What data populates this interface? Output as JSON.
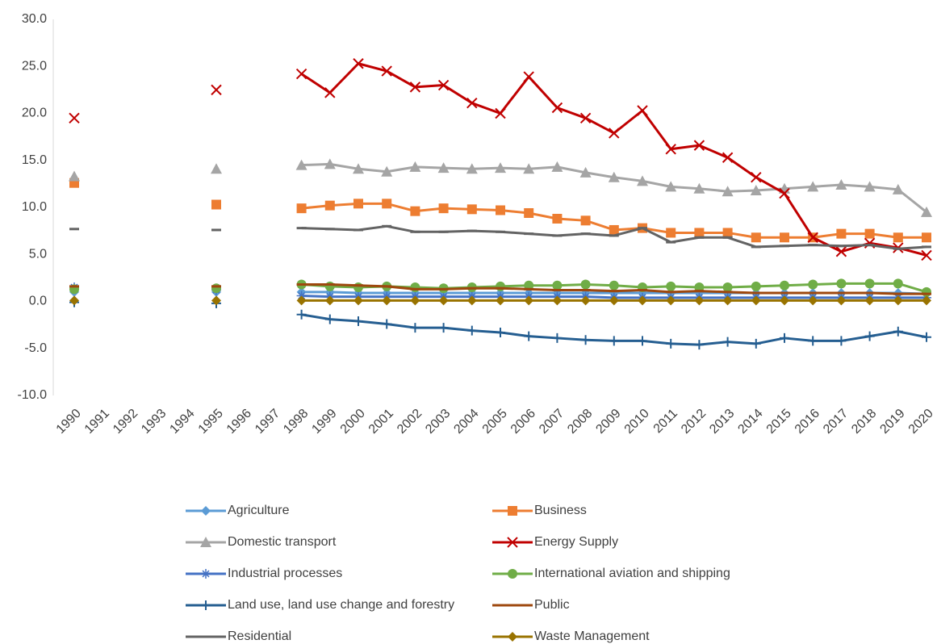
{
  "chart_data": {
    "type": "line",
    "categories": [
      "1990",
      "1991",
      "1992",
      "1993",
      "1994",
      "1995",
      "1996",
      "1997",
      "1998",
      "1999",
      "2000",
      "2001",
      "2002",
      "2003",
      "2004",
      "2005",
      "2006",
      "2007",
      "2008",
      "2009",
      "2010",
      "2011",
      "2012",
      "2013",
      "2014",
      "2015",
      "2016",
      "2017",
      "2018",
      "2019",
      "2020"
    ],
    "ylim": [
      -10,
      30
    ],
    "yticks": [
      {
        "value": -10,
        "label": "-10.0"
      },
      {
        "value": -5,
        "label": "-5.0"
      },
      {
        "value": 0,
        "label": "0.0"
      },
      {
        "value": 5,
        "label": "5.0"
      },
      {
        "value": 10,
        "label": "10.0"
      },
      {
        "value": 15,
        "label": "15.0"
      },
      {
        "value": 20,
        "label": "20.0"
      },
      {
        "value": 25,
        "label": "25.0"
      },
      {
        "value": 30,
        "label": "30.0"
      }
    ],
    "grid": false,
    "legend": "bottom",
    "series": [
      {
        "name": "Agriculture",
        "color": "#5b9bd5",
        "marker": "diamond",
        "values": [
          1.0,
          null,
          null,
          null,
          null,
          1.0,
          null,
          null,
          1.0,
          1.0,
          0.9,
          0.9,
          0.9,
          0.9,
          0.9,
          0.9,
          0.9,
          0.9,
          0.9,
          0.9,
          0.9,
          0.9,
          0.9,
          0.9,
          0.9,
          0.9,
          0.9,
          0.9,
          0.9,
          0.9,
          0.8
        ]
      },
      {
        "name": "Business",
        "color": "#ed7d31",
        "marker": "square",
        "values": [
          12.6,
          null,
          null,
          null,
          null,
          10.3,
          null,
          null,
          9.9,
          10.2,
          10.4,
          10.4,
          9.6,
          9.9,
          9.8,
          9.7,
          9.4,
          8.8,
          8.6,
          7.6,
          7.8,
          7.3,
          7.3,
          7.3,
          6.8,
          6.8,
          6.8,
          7.2,
          7.2,
          6.8,
          6.8
        ]
      },
      {
        "name": "Domestic transport",
        "color": "#a5a5a5",
        "marker": "triangle",
        "values": [
          13.3,
          null,
          null,
          null,
          null,
          14.1,
          null,
          null,
          14.5,
          14.6,
          14.1,
          13.8,
          14.3,
          14.2,
          14.1,
          14.2,
          14.1,
          14.3,
          13.7,
          13.2,
          12.8,
          12.2,
          12.0,
          11.7,
          11.8,
          12.0,
          12.2,
          12.4,
          12.2,
          11.9,
          9.5
        ]
      },
      {
        "name": "Energy Supply",
        "color": "#c00000",
        "marker": "x",
        "values": [
          19.5,
          null,
          null,
          null,
          null,
          22.5,
          null,
          null,
          24.2,
          22.2,
          25.3,
          24.5,
          22.8,
          23.0,
          21.1,
          20.0,
          23.9,
          20.6,
          19.5,
          17.9,
          20.3,
          16.2,
          16.6,
          15.3,
          13.2,
          11.5,
          6.8,
          5.3,
          6.2,
          5.7,
          4.9
        ]
      },
      {
        "name": "Industrial processes",
        "color": "#4472c4",
        "marker": "star",
        "values": [
          1.5,
          null,
          null,
          null,
          null,
          1.2,
          null,
          null,
          0.6,
          0.5,
          0.5,
          0.5,
          0.5,
          0.5,
          0.5,
          0.5,
          0.5,
          0.5,
          0.5,
          0.4,
          0.4,
          0.4,
          0.4,
          0.4,
          0.4,
          0.4,
          0.4,
          0.4,
          0.4,
          0.4,
          0.4
        ]
      },
      {
        "name": "International aviation and shipping",
        "color": "#70ad47",
        "marker": "circle",
        "values": [
          1.3,
          null,
          null,
          null,
          null,
          1.4,
          null,
          null,
          1.8,
          1.6,
          1.5,
          1.6,
          1.5,
          1.4,
          1.5,
          1.6,
          1.7,
          1.7,
          1.8,
          1.7,
          1.5,
          1.6,
          1.5,
          1.5,
          1.6,
          1.7,
          1.8,
          1.9,
          1.9,
          1.9,
          1.0
        ]
      },
      {
        "name": "Land use, land use change and forestry",
        "color": "#255e91",
        "marker": "plus",
        "values": [
          -0.1,
          null,
          null,
          null,
          null,
          -0.2,
          null,
          null,
          -1.4,
          -1.9,
          -2.1,
          -2.4,
          -2.8,
          -2.8,
          -3.1,
          -3.3,
          -3.7,
          -3.9,
          -4.1,
          -4.2,
          -4.2,
          -4.5,
          -4.6,
          -4.3,
          -4.5,
          -3.9,
          -4.2,
          -4.2,
          -3.7,
          -3.2,
          -3.8
        ]
      },
      {
        "name": "Public",
        "color": "#9e480e",
        "marker": "dash",
        "values": [
          1.6,
          null,
          null,
          null,
          null,
          1.6,
          null,
          null,
          1.8,
          1.8,
          1.7,
          1.6,
          1.3,
          1.3,
          1.4,
          1.4,
          1.3,
          1.2,
          1.2,
          1.1,
          1.2,
          1.0,
          1.1,
          1.0,
          0.9,
          0.9,
          0.9,
          0.9,
          0.9,
          0.8,
          0.8
        ]
      },
      {
        "name": "Residential",
        "color": "#636363",
        "marker": "dash",
        "values": [
          7.7,
          null,
          null,
          null,
          null,
          7.6,
          null,
          null,
          7.8,
          7.7,
          7.6,
          8.0,
          7.4,
          7.4,
          7.5,
          7.4,
          7.2,
          7.0,
          7.2,
          7.0,
          7.8,
          6.3,
          6.8,
          6.8,
          5.8,
          5.9,
          6.0,
          5.9,
          6.0,
          5.6,
          5.8
        ]
      },
      {
        "name": "Waste Management",
        "color": "#997300",
        "marker": "diamond",
        "values": [
          0.1,
          null,
          null,
          null,
          null,
          0.1,
          null,
          null,
          0.1,
          0.1,
          0.1,
          0.1,
          0.1,
          0.1,
          0.1,
          0.1,
          0.1,
          0.1,
          0.1,
          0.1,
          0.1,
          0.1,
          0.1,
          0.1,
          0.1,
          0.1,
          0.1,
          0.1,
          0.1,
          0.1,
          0.1
        ]
      }
    ]
  }
}
